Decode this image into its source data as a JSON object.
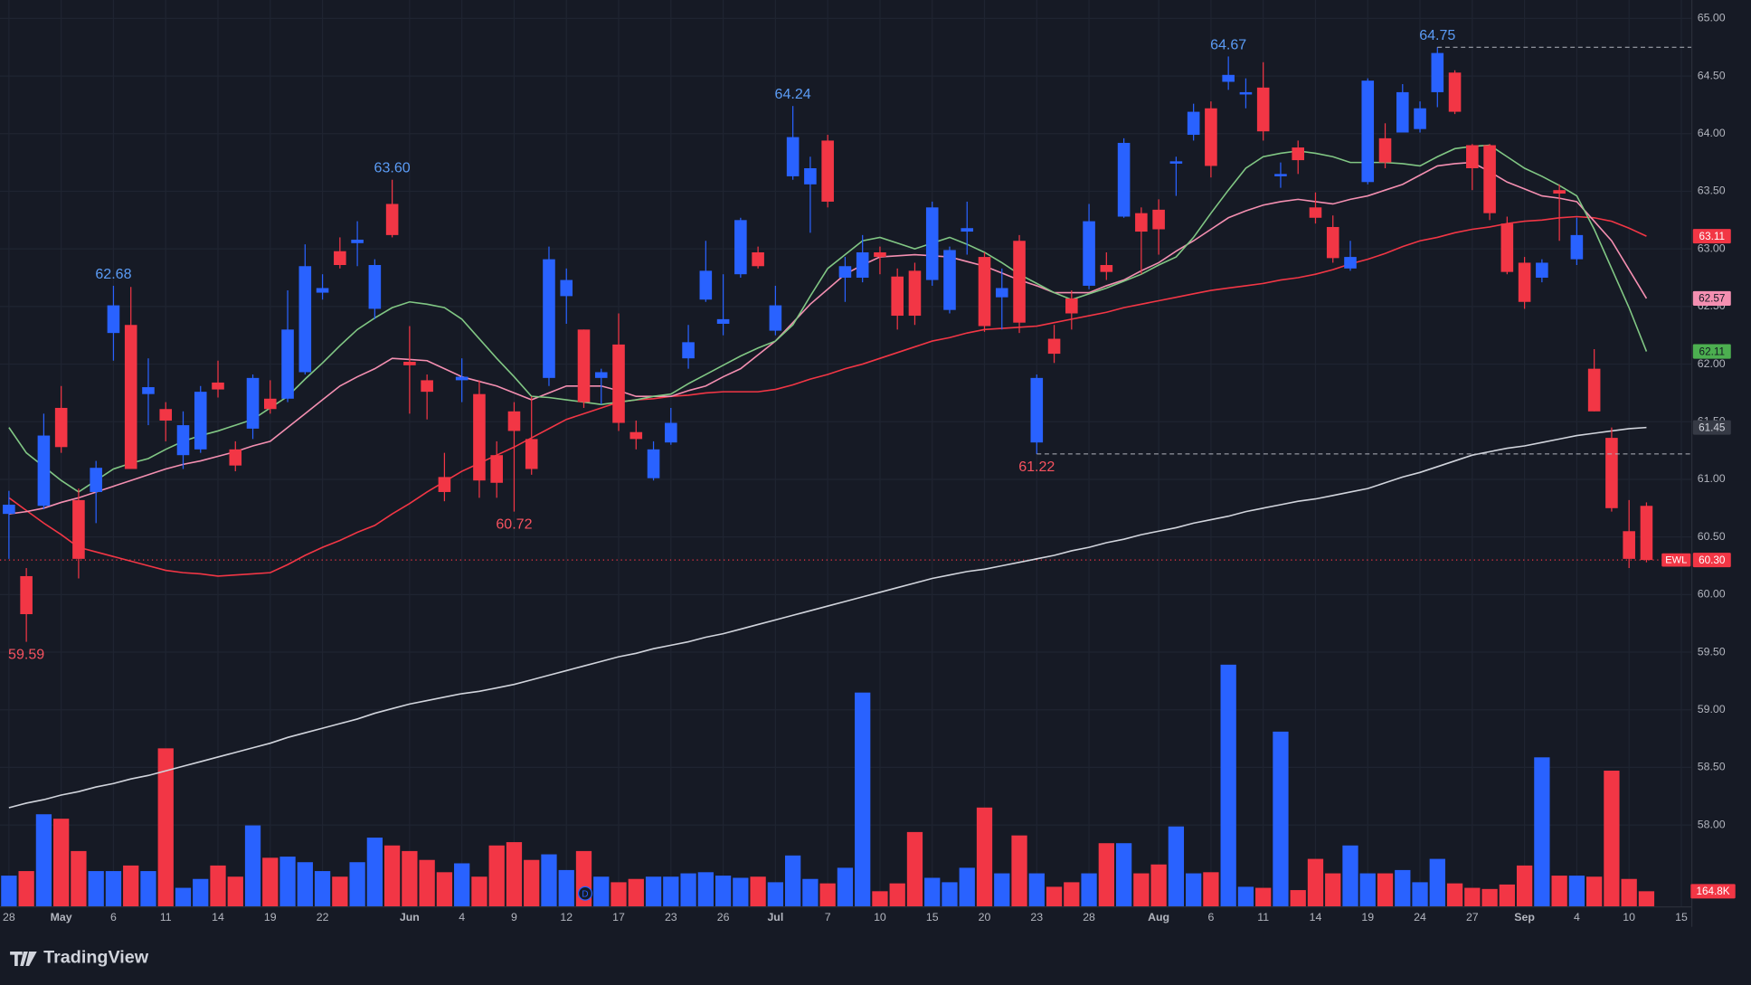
{
  "chart_data": {
    "type": "candlestick",
    "symbol": "EWL",
    "branding": "TradingView",
    "dividend_marker": "D",
    "up_color": "#2962ff",
    "down_color": "#f23645",
    "grid": true,
    "ylim": [
      57.29,
      65.16
    ],
    "y2lim": [
      0,
      3000
    ],
    "yticks": [
      {
        "value": 58,
        "label": "58.00"
      },
      {
        "value": 58.5,
        "label": "58.50"
      },
      {
        "value": 59,
        "label": "59.00"
      },
      {
        "value": 59.5,
        "label": "59.50"
      },
      {
        "value": 60,
        "label": "60.00"
      },
      {
        "value": 60.5,
        "label": "60.50"
      },
      {
        "value": 61,
        "label": "61.00"
      },
      {
        "value": 61.5,
        "label": "61.50"
      },
      {
        "value": 62,
        "label": "62.00"
      },
      {
        "value": 62.5,
        "label": "62.50"
      },
      {
        "value": 63,
        "label": "63.00"
      },
      {
        "value": 63.5,
        "label": "63.50"
      },
      {
        "value": 64,
        "label": "64.00"
      },
      {
        "value": 64.5,
        "label": "64.50"
      },
      {
        "value": 65,
        "label": "65.00"
      }
    ],
    "categories": [
      "28",
      null,
      null,
      "May",
      null,
      null,
      "6",
      null,
      null,
      "11",
      null,
      null,
      "14",
      null,
      null,
      "19",
      null,
      null,
      "22",
      null,
      null,
      null,
      null,
      "Jun",
      null,
      null,
      "4",
      null,
      null,
      "9",
      null,
      null,
      "12",
      null,
      null,
      "17",
      null,
      null,
      "23",
      null,
      null,
      "26",
      null,
      null,
      "Jul",
      null,
      null,
      "7",
      null,
      null,
      "10",
      null,
      null,
      "15",
      null,
      null,
      "20",
      null,
      null,
      "23",
      null,
      null,
      "28",
      null,
      null,
      null,
      "Aug",
      null,
      null,
      "6",
      null,
      null,
      "11",
      null,
      null,
      "14",
      null,
      null,
      "19",
      null,
      null,
      "24",
      null,
      null,
      "27",
      null,
      null,
      "Sep",
      null,
      null,
      "4",
      null,
      null,
      "10",
      null,
      null,
      "15"
    ],
    "open": [
      60.7,
      60.16,
      60.77,
      61.62,
      60.82,
      60.89,
      62.27,
      62.34,
      61.74,
      61.61,
      61.21,
      61.26,
      61.84,
      61.26,
      61.44,
      61.7,
      61.7,
      61.93,
      62.62,
      62.98,
      63.05,
      62.48,
      63.39,
      62.02,
      61.86,
      61.02,
      61.86,
      61.74,
      61.21,
      61.59,
      61.35,
      61.88,
      62.59,
      62.3,
      61.88,
      62.17,
      61.41,
      61.01,
      61.32,
      62.05,
      62.56,
      62.35,
      62.78,
      62.97,
      62.29,
      63.63,
      63.56,
      63.94,
      62.75,
      62.75,
      62.97,
      62.76,
      62.81,
      62.73,
      62.47,
      63.15,
      62.93,
      62.58,
      63.07,
      61.32,
      62.22,
      62.57,
      62.68,
      62.86,
      63.28,
      63.31,
      63.34,
      63.74,
      63.99,
      64.22,
      64.45,
      64.34,
      64.4,
      63.63,
      63.88,
      63.36,
      63.19,
      62.83,
      63.58,
      63.96,
      64.01,
      64.04,
      64.36,
      64.53,
      63.9,
      63.9,
      63.22,
      62.88,
      62.75,
      63.51,
      62.91,
      61.96,
      61.36,
      60.55,
      60.77,
      null,
      null
    ],
    "high": [
      60.9,
      60.23,
      61.57,
      61.81,
      60.92,
      61.16,
      62.68,
      62.67,
      62.05,
      61.67,
      61.59,
      61.81,
      62.03,
      61.33,
      61.91,
      61.86,
      62.64,
      63.04,
      62.78,
      63.1,
      63.24,
      62.91,
      63.6,
      62.33,
      61.91,
      61.23,
      62.05,
      61.86,
      61.33,
      61.67,
      61.72,
      63.02,
      62.83,
      62.3,
      61.96,
      62.44,
      61.51,
      61.33,
      61.62,
      62.34,
      63.07,
      62.78,
      63.27,
      63.02,
      62.68,
      64.24,
      63.8,
      63.99,
      62.93,
      63.12,
      63.02,
      62.83,
      62.88,
      63.41,
      63.02,
      63.41,
      62.97,
      62.83,
      63.12,
      61.91,
      62.34,
      62.64,
      63.39,
      62.97,
      63.96,
      63.36,
      63.43,
      63.8,
      64.26,
      64.28,
      64.67,
      64.48,
      64.62,
      63.75,
      63.94,
      63.49,
      63.29,
      63.07,
      64.48,
      64.09,
      64.43,
      64.28,
      64.75,
      64.55,
      63.91,
      63.91,
      63.28,
      62.93,
      62.91,
      63.56,
      63.27,
      62.13,
      61.45,
      60.82,
      60.8,
      null,
      null
    ],
    "low": [
      60.31,
      59.59,
      60.74,
      61.23,
      60.14,
      60.62,
      62.03,
      61.09,
      61.47,
      61.33,
      61.09,
      61.23,
      61.71,
      61.07,
      61.35,
      61.57,
      61.67,
      61.91,
      62.56,
      62.83,
      62.85,
      62.39,
      63.1,
      61.57,
      61.52,
      60.81,
      61.67,
      60.84,
      60.84,
      60.72,
      61.04,
      61.81,
      62.35,
      61.62,
      61.65,
      61.42,
      61.26,
      60.99,
      61.3,
      61.96,
      62.54,
      62.25,
      62.75,
      62.83,
      62.25,
      63.6,
      63.14,
      63.36,
      62.54,
      62.71,
      62.78,
      62.3,
      62.34,
      62.68,
      62.44,
      62.95,
      62.28,
      62.3,
      62.27,
      61.22,
      62.01,
      62.3,
      62.65,
      62.73,
      63.27,
      62.78,
      62.95,
      63.46,
      63.94,
      63.62,
      64.38,
      64.22,
      63.94,
      63.53,
      63.65,
      63.22,
      62.88,
      62.81,
      63.56,
      63.7,
      64.01,
      64.01,
      64.23,
      64.17,
      63.51,
      63.25,
      62.78,
      62.48,
      62.71,
      63.07,
      62.86,
      61.59,
      60.72,
      60.23,
      60.28,
      null,
      null
    ],
    "close": [
      60.78,
      59.83,
      61.38,
      61.28,
      60.31,
      61.1,
      62.51,
      61.09,
      61.8,
      61.51,
      61.47,
      61.76,
      61.78,
      61.12,
      61.88,
      61.61,
      62.3,
      62.85,
      62.66,
      62.86,
      63.08,
      62.86,
      63.12,
      61.99,
      61.76,
      60.89,
      61.89,
      60.99,
      60.97,
      61.42,
      61.09,
      62.91,
      62.73,
      61.67,
      61.93,
      61.49,
      61.35,
      61.26,
      61.49,
      62.19,
      62.81,
      62.39,
      63.25,
      62.85,
      62.51,
      63.97,
      63.7,
      63.41,
      62.85,
      62.97,
      62.93,
      62.42,
      62.42,
      63.36,
      62.99,
      63.18,
      62.33,
      62.66,
      62.36,
      61.88,
      62.09,
      62.44,
      63.24,
      62.8,
      63.92,
      63.15,
      63.17,
      63.76,
      64.19,
      63.72,
      64.51,
      64.36,
      64.02,
      63.65,
      63.77,
      63.27,
      62.92,
      62.93,
      64.46,
      63.75,
      64.36,
      64.22,
      64.7,
      64.19,
      63.7,
      63.31,
      62.8,
      62.54,
      62.88,
      63.48,
      63.12,
      61.59,
      60.75,
      60.31,
      60.3,
      null,
      null
    ],
    "volume": [
      330,
      378,
      979,
      932,
      590,
      378,
      378,
      437,
      378,
      1676,
      201,
      295,
      437,
      319,
      861,
      519,
      531,
      472,
      378,
      319,
      472,
      732,
      649,
      590,
      496,
      366,
      460,
      319,
      649,
      684,
      496,
      555,
      389,
      590,
      319,
      260,
      295,
      319,
      319,
      354,
      366,
      330,
      307,
      319,
      260,
      543,
      295,
      248,
      413,
      2266,
      165,
      248,
      791,
      307,
      260,
      413,
      1050,
      354,
      755,
      354,
      212,
      260,
      354,
      673,
      673,
      354,
      448,
      850,
      354,
      366,
      2561,
      212,
      201,
      1853,
      177,
      507,
      354,
      649,
      354,
      354,
      389,
      260,
      507,
      248,
      201,
      189,
      236,
      437,
      1581,
      330,
      330,
      319,
      1440,
      295,
      164.8,
      null,
      null
    ],
    "series": [
      {
        "color": "#d1d4dc",
        "values": [
          58.15,
          58.19,
          58.22,
          58.26,
          58.29,
          58.33,
          58.36,
          58.4,
          58.43,
          58.47,
          58.51,
          58.55,
          58.59,
          58.63,
          58.67,
          58.71,
          58.76,
          58.8,
          58.84,
          58.88,
          58.92,
          58.97,
          59.01,
          59.05,
          59.08,
          59.11,
          59.14,
          59.16,
          59.19,
          59.22,
          59.26,
          59.3,
          59.34,
          59.38,
          59.42,
          59.46,
          59.49,
          59.53,
          59.56,
          59.59,
          59.63,
          59.66,
          59.7,
          59.74,
          59.78,
          59.82,
          59.86,
          59.9,
          59.94,
          59.98,
          60.02,
          60.06,
          60.1,
          60.14,
          60.17,
          60.2,
          60.22,
          60.25,
          60.28,
          60.31,
          60.34,
          60.38,
          60.41,
          60.45,
          60.48,
          60.52,
          60.55,
          60.58,
          60.62,
          60.65,
          60.68,
          60.72,
          60.75,
          60.78,
          60.81,
          60.83,
          60.86,
          60.89,
          60.92,
          60.97,
          61.02,
          61.06,
          61.11,
          61.16,
          61.21,
          61.24,
          61.27,
          61.29,
          61.32,
          61.35,
          61.38,
          61.4,
          61.42,
          61.44,
          61.45,
          null,
          null
        ]
      },
      {
        "color": "#f23645",
        "values": [
          60.84,
          60.73,
          60.62,
          60.52,
          60.41,
          60.37,
          60.33,
          60.29,
          60.25,
          60.21,
          60.19,
          60.18,
          60.16,
          60.17,
          60.18,
          60.19,
          60.26,
          60.34,
          60.41,
          60.47,
          60.54,
          60.6,
          60.7,
          60.79,
          60.89,
          60.98,
          61.07,
          61.14,
          61.21,
          61.28,
          61.36,
          61.44,
          61.52,
          61.57,
          61.62,
          61.67,
          61.69,
          61.7,
          61.72,
          61.73,
          61.75,
          61.76,
          61.76,
          61.76,
          61.78,
          61.82,
          61.87,
          61.91,
          61.96,
          62.0,
          62.05,
          62.1,
          62.15,
          62.2,
          62.23,
          62.27,
          62.3,
          62.31,
          62.32,
          62.33,
          62.36,
          62.39,
          62.42,
          62.45,
          62.49,
          62.52,
          62.55,
          62.58,
          62.61,
          62.64,
          62.66,
          62.68,
          62.7,
          62.73,
          62.75,
          62.78,
          62.82,
          62.87,
          62.91,
          62.96,
          63.02,
          63.07,
          63.1,
          63.14,
          63.17,
          63.19,
          63.22,
          63.24,
          63.25,
          63.27,
          63.28,
          63.27,
          63.24,
          63.18,
          63.11,
          null,
          null
        ]
      },
      {
        "color": "#f48fb1",
        "values": [
          60.7,
          60.72,
          60.75,
          60.8,
          60.84,
          60.89,
          60.94,
          60.99,
          61.04,
          61.09,
          61.13,
          61.16,
          61.2,
          61.24,
          61.29,
          61.33,
          61.45,
          61.57,
          61.69,
          61.81,
          61.89,
          61.96,
          62.05,
          62.04,
          62.03,
          61.96,
          61.89,
          61.85,
          61.81,
          61.75,
          61.69,
          61.75,
          61.81,
          61.81,
          61.81,
          61.77,
          61.72,
          61.72,
          61.72,
          61.77,
          61.81,
          61.89,
          61.96,
          62.08,
          62.2,
          62.36,
          62.52,
          62.65,
          62.78,
          62.86,
          62.93,
          62.94,
          62.95,
          62.94,
          62.93,
          62.89,
          62.85,
          62.79,
          62.73,
          62.68,
          62.62,
          62.62,
          62.62,
          62.68,
          62.73,
          62.81,
          62.88,
          62.98,
          63.07,
          63.17,
          63.27,
          63.33,
          63.38,
          63.41,
          63.43,
          63.41,
          63.39,
          63.43,
          63.46,
          63.51,
          63.56,
          63.64,
          63.72,
          63.74,
          63.75,
          63.67,
          63.58,
          63.52,
          63.46,
          63.44,
          63.41,
          63.24,
          63.07,
          62.82,
          62.57,
          null,
          null
        ]
      },
      {
        "color": "#81c784",
        "values": [
          61.45,
          61.23,
          61.11,
          60.99,
          60.89,
          60.99,
          61.09,
          61.14,
          61.18,
          61.26,
          61.33,
          61.38,
          61.42,
          61.47,
          61.52,
          61.62,
          61.72,
          61.87,
          62.01,
          62.16,
          62.3,
          62.4,
          62.49,
          62.54,
          62.52,
          62.49,
          62.39,
          62.22,
          62.05,
          61.89,
          61.72,
          61.71,
          61.69,
          61.67,
          61.65,
          61.67,
          61.69,
          61.72,
          61.74,
          61.83,
          61.91,
          61.99,
          62.07,
          62.14,
          62.2,
          62.34,
          62.59,
          62.83,
          62.95,
          63.07,
          63.1,
          63.05,
          63.0,
          63.05,
          63.1,
          63.04,
          62.97,
          62.88,
          62.78,
          62.7,
          62.62,
          62.56,
          62.61,
          62.66,
          62.72,
          62.78,
          62.86,
          62.93,
          63.1,
          63.31,
          63.51,
          63.7,
          63.8,
          63.83,
          63.85,
          63.83,
          63.8,
          63.75,
          63.75,
          63.75,
          63.74,
          63.72,
          63.8,
          63.87,
          63.89,
          63.9,
          63.8,
          63.7,
          63.63,
          63.55,
          63.46,
          63.17,
          62.83,
          62.49,
          62.11,
          null,
          null
        ]
      }
    ],
    "annotations": [
      {
        "kind": "high",
        "value": 62.68,
        "label": "62.68"
      },
      {
        "kind": "high",
        "value": 63.6,
        "label": "63.60"
      },
      {
        "kind": "high",
        "value": 64.24,
        "label": "64.24"
      },
      {
        "kind": "high",
        "value": 64.67,
        "label": "64.67"
      },
      {
        "kind": "high",
        "value": 64.75,
        "label": "64.75",
        "dashed": true
      },
      {
        "kind": "low",
        "value": 59.59,
        "label": "59.59"
      },
      {
        "kind": "low",
        "value": 60.72,
        "label": "60.72"
      },
      {
        "kind": "low",
        "value": 61.22,
        "label": "61.22",
        "dashed": true
      }
    ],
    "price_tags": [
      {
        "value": 63.11,
        "label": "63.11",
        "color": "#f23645",
        "text_color": "#ffffff"
      },
      {
        "value": 62.57,
        "label": "62.57",
        "color": "#f48fb1",
        "text_color": "#131722"
      },
      {
        "value": 62.11,
        "label": "62.11",
        "color": "#4caf50",
        "text_color": "#131722"
      },
      {
        "value": 61.45,
        "label": "61.45",
        "color": "#363a45",
        "text_color": "#d1d4dc"
      },
      {
        "value": 60.3,
        "label": "60.30",
        "color": "#f23645",
        "text_color": "#ffffff",
        "line": "dotted"
      }
    ],
    "volume_tag": {
      "value": 164.8,
      "label": "164.8K",
      "color": "#f23645"
    }
  }
}
